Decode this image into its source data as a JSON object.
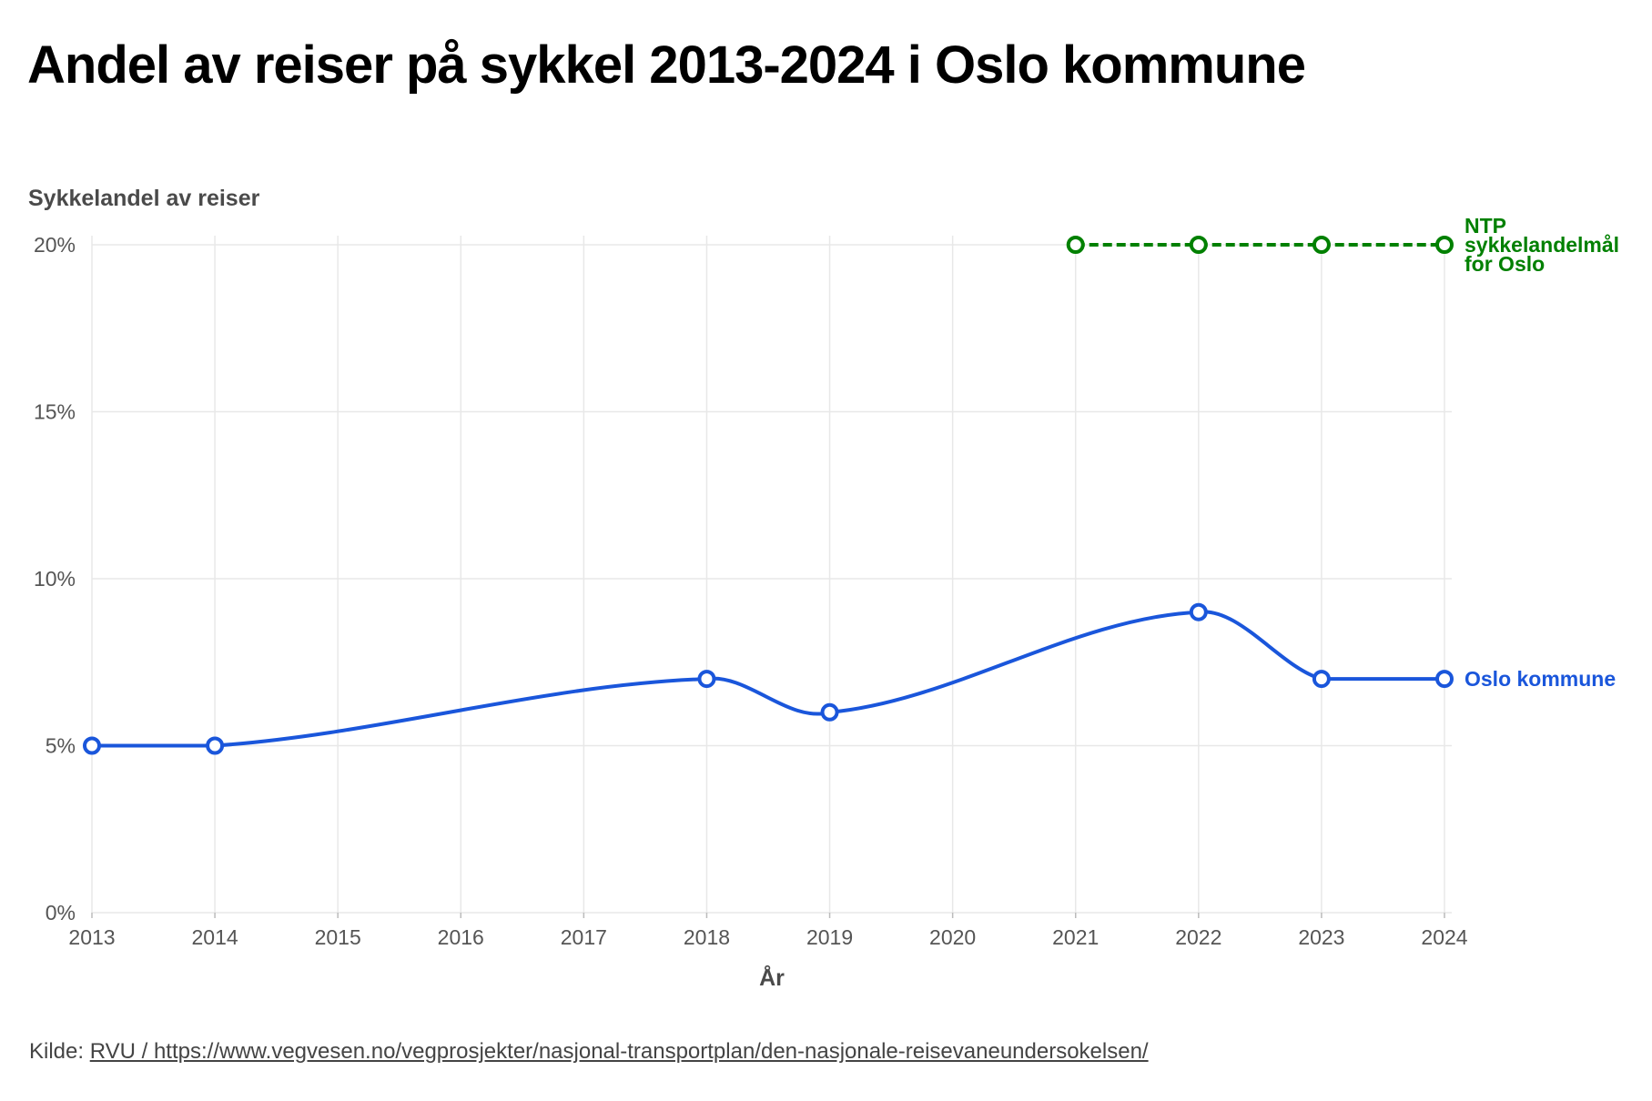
{
  "chart_data": {
    "type": "line",
    "title": "Andel av reiser på sykkel 2013-2024 i Oslo kommune",
    "ylabel": "Sykkelandel av reiser",
    "xlabel": "År",
    "x_ticks": [
      "2013",
      "2014",
      "2015",
      "2016",
      "2017",
      "2018",
      "2019",
      "2020",
      "2021",
      "2022",
      "2023",
      "2024"
    ],
    "y_ticks": [
      "0%",
      "5%",
      "10%",
      "15%",
      "20%"
    ],
    "y_tick_values": [
      0,
      5,
      10,
      15,
      20
    ],
    "xlim": [
      2013,
      2024
    ],
    "ylim": [
      0,
      20
    ],
    "grid": true,
    "series": [
      {
        "name": "Oslo kommune",
        "color": "#1a56db",
        "style": "solid-smooth",
        "x": [
          2013,
          2014,
          2018,
          2019,
          2022,
          2023,
          2024
        ],
        "y": [
          5,
          5,
          7,
          6,
          9,
          7,
          7
        ]
      },
      {
        "name": "NTP sykkelandelmål for Oslo",
        "label_lines": [
          "NTP",
          "sykkelandelmål",
          "for Oslo"
        ],
        "color": "#008000",
        "style": "dashed",
        "x": [
          2021,
          2022,
          2023,
          2024
        ],
        "y": [
          20,
          20,
          20,
          20
        ]
      }
    ]
  },
  "source": {
    "prefix": "Kilde: ",
    "link_text": "RVU / https://www.vegvesen.no/vegprosjekter/nasjonal-transportplan/den-nasjonale-reisevaneundersokelsen/"
  }
}
